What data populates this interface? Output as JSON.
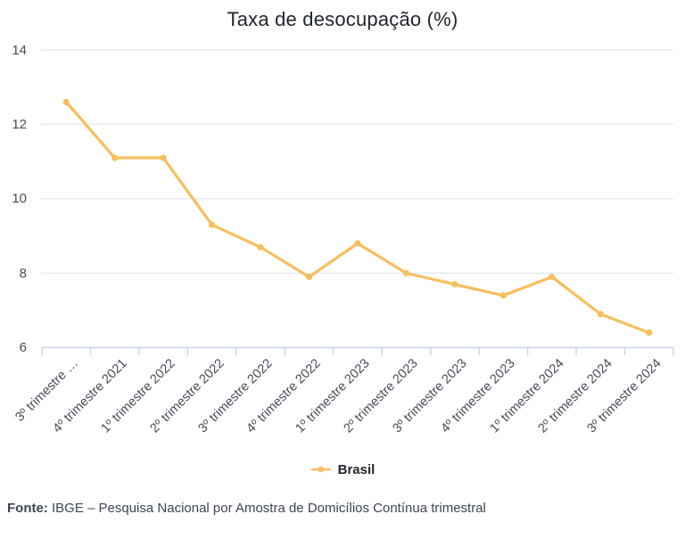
{
  "chart": {
    "title": "Taxa de desocupação (%)",
    "legend": {
      "label": "Brasil"
    }
  },
  "footer": {
    "label": "Fonte:",
    "text": "IBGE – Pesquisa Nacional por Amostra de Domicílios Contínua trimestral"
  },
  "chart_data": {
    "type": "line",
    "title": "Taxa de desocupação (%)",
    "categories": [
      "3º trimestre …",
      "4º trimestre 2021",
      "1º trimestre 2022",
      "2º trimestre 2022",
      "3º trimestre 2022",
      "4º trimestre 2022",
      "1º trimestre 2023",
      "2º trimestre 2023",
      "3º trimestre 2023",
      "4º trimestre 2023",
      "1º trimestre 2024",
      "2º trimestre 2024",
      "3º trimestre 2024"
    ],
    "series": [
      {
        "name": "Brasil",
        "values": [
          12.6,
          11.1,
          11.1,
          9.3,
          8.7,
          7.9,
          8.8,
          8.0,
          7.7,
          7.4,
          7.9,
          6.9,
          6.4
        ],
        "color": "#F8BE5E"
      }
    ],
    "xlabel": "",
    "ylabel": "",
    "ylim": [
      6,
      14
    ],
    "yticks": [
      6,
      8,
      10,
      12,
      14
    ],
    "grid": true,
    "legend_position": "bottom",
    "colors": {
      "grid": "#E3EAF4",
      "axis": "#C9D7EA",
      "label": "#454D59",
      "title": "#20262D"
    }
  }
}
